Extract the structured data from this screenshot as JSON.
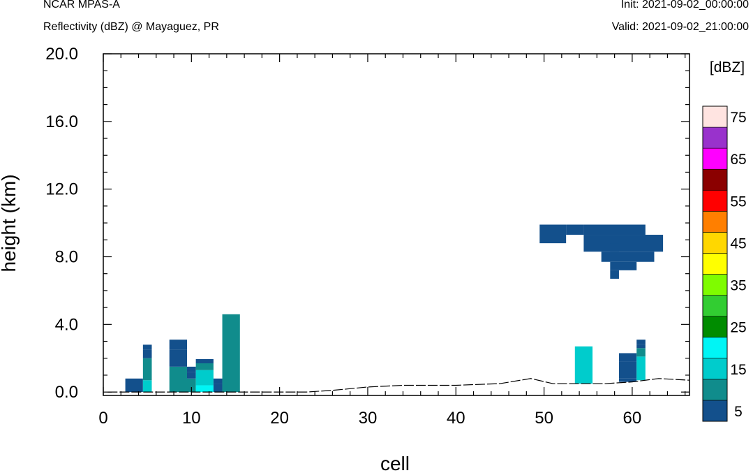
{
  "header": {
    "model": "NCAR MPAS-A",
    "field": "Reflectivity (dBZ) @ Mayaguez, PR",
    "init": "Init: 2021-09-02_00:00:00",
    "valid": "Valid: 2021-09-02_21:00:00"
  },
  "chart_data": {
    "type": "heatmap",
    "xlabel": "cell",
    "ylabel": "height (km)",
    "xlim": [
      0,
      66.5
    ],
    "ylim": [
      -0.2,
      20.0
    ],
    "x_ticks": [
      0,
      10,
      20,
      30,
      40,
      50,
      60
    ],
    "x_tick_labels": [
      "0",
      "10",
      "20",
      "30",
      "40",
      "50",
      "60"
    ],
    "y_ticks": [
      0,
      4,
      8,
      12,
      16,
      20
    ],
    "y_tick_labels": [
      "0.0",
      "4.0",
      "8.0",
      "12.0",
      "16.0",
      "20.0"
    ],
    "colorbar": {
      "title": "[dBZ]",
      "bounds": [
        0,
        10,
        15,
        20,
        25,
        30,
        35,
        40,
        45,
        50,
        55,
        60,
        65,
        70,
        75
      ],
      "labels": [
        "5",
        "15",
        "25",
        "35",
        "45",
        "55",
        "65",
        "75"
      ],
      "colors": [
        "#13508c",
        "#108c8c",
        "#00cccc",
        "#00f5f5",
        "#008c00",
        "#32cd32",
        "#7ffc00",
        "#ffff00",
        "#ffd700",
        "#ff7f00",
        "#ff0000",
        "#8b0000",
        "#ff00ff",
        "#9932cc",
        "#ffe4e1"
      ]
    },
    "terrain": [
      [
        0.5,
        0.0
      ],
      [
        23,
        0.0
      ],
      [
        26,
        0.1
      ],
      [
        30,
        0.3
      ],
      [
        34,
        0.4
      ],
      [
        40,
        0.4
      ],
      [
        45,
        0.5
      ],
      [
        48.5,
        0.8
      ],
      [
        51,
        0.5
      ],
      [
        54,
        0.5
      ],
      [
        57,
        0.5
      ],
      [
        60,
        0.6
      ],
      [
        63,
        0.8
      ],
      [
        66.5,
        0.7
      ]
    ],
    "cells": [
      {
        "x0": 2.5,
        "x1": 4.5,
        "y0": 0.0,
        "y1": 0.8,
        "dbz": 5
      },
      {
        "x0": 4.5,
        "x1": 5.5,
        "y0": 0.0,
        "y1": 0.7,
        "dbz": 17
      },
      {
        "x0": 4.5,
        "x1": 5.5,
        "y0": 0.7,
        "y1": 2.0,
        "dbz": 13
      },
      {
        "x0": 4.5,
        "x1": 5.5,
        "y0": 2.0,
        "y1": 2.5,
        "dbz": 8
      },
      {
        "x0": 4.5,
        "x1": 5.5,
        "y0": 2.5,
        "y1": 2.8,
        "dbz": 5
      },
      {
        "x0": 7.5,
        "x1": 9.5,
        "y0": 0.0,
        "y1": 1.5,
        "dbz": 13
      },
      {
        "x0": 7.5,
        "x1": 9.5,
        "y0": 1.5,
        "y1": 2.5,
        "dbz": 8
      },
      {
        "x0": 7.5,
        "x1": 9.5,
        "y0": 2.5,
        "y1": 3.1,
        "dbz": 5
      },
      {
        "x0": 9.5,
        "x1": 10.5,
        "y0": 0.0,
        "y1": 0.8,
        "dbz": 13
      },
      {
        "x0": 9.5,
        "x1": 10.5,
        "y0": 0.8,
        "y1": 1.2,
        "dbz": 8
      },
      {
        "x0": 9.5,
        "x1": 10.5,
        "y0": 1.2,
        "y1": 1.5,
        "dbz": 5
      },
      {
        "x0": 10.5,
        "x1": 12.5,
        "y0": 0.0,
        "y1": 0.4,
        "dbz": 22
      },
      {
        "x0": 10.5,
        "x1": 12.5,
        "y0": 0.4,
        "y1": 1.3,
        "dbz": 17
      },
      {
        "x0": 10.5,
        "x1": 12.5,
        "y0": 1.3,
        "y1": 1.7,
        "dbz": 13
      },
      {
        "x0": 10.5,
        "x1": 12.5,
        "y0": 1.7,
        "y1": 1.95,
        "dbz": 8
      },
      {
        "x0": 12.5,
        "x1": 13.5,
        "y0": 0.0,
        "y1": 0.5,
        "dbz": 8
      },
      {
        "x0": 12.5,
        "x1": 13.5,
        "y0": 0.5,
        "y1": 0.8,
        "dbz": 5
      },
      {
        "x0": 13.5,
        "x1": 15.5,
        "y0": 0.0,
        "y1": 4.6,
        "dbz": 13
      },
      {
        "x0": 53.5,
        "x1": 55.5,
        "y0": 0.5,
        "y1": 2.7,
        "dbz": 17
      },
      {
        "x0": 58.5,
        "x1": 60.5,
        "y0": 0.6,
        "y1": 0.8,
        "dbz": 5
      },
      {
        "x0": 58.5,
        "x1": 60.5,
        "y0": 0.8,
        "y1": 1.8,
        "dbz": 8
      },
      {
        "x0": 58.5,
        "x1": 60.5,
        "y0": 1.8,
        "y1": 2.3,
        "dbz": 5
      },
      {
        "x0": 60.5,
        "x1": 61.5,
        "y0": 0.7,
        "y1": 2.1,
        "dbz": 17
      },
      {
        "x0": 60.5,
        "x1": 61.5,
        "y0": 2.1,
        "y1": 2.6,
        "dbz": 13
      },
      {
        "x0": 60.5,
        "x1": 61.5,
        "y0": 2.6,
        "y1": 2.85,
        "dbz": 8
      },
      {
        "x0": 60.5,
        "x1": 61.5,
        "y0": 2.85,
        "y1": 3.1,
        "dbz": 5
      },
      {
        "x0": 49.5,
        "x1": 52.5,
        "y0": 8.8,
        "y1": 9.9,
        "dbz": 5
      },
      {
        "x0": 52.5,
        "x1": 54.5,
        "y0": 9.3,
        "y1": 9.9,
        "dbz": 5
      },
      {
        "x0": 54.5,
        "x1": 61.5,
        "y0": 9.3,
        "y1": 9.9,
        "dbz": 5
      },
      {
        "x0": 54.5,
        "x1": 63.5,
        "y0": 8.3,
        "y1": 9.3,
        "dbz": 5
      },
      {
        "x0": 56.5,
        "x1": 62.5,
        "y0": 7.7,
        "y1": 8.3,
        "dbz": 5
      },
      {
        "x0": 57.5,
        "x1": 60.5,
        "y0": 7.2,
        "y1": 7.7,
        "dbz": 5
      },
      {
        "x0": 57.5,
        "x1": 58.5,
        "y0": 6.7,
        "y1": 7.2,
        "dbz": 5
      },
      {
        "x0": 57.5,
        "x1": 58.5,
        "y0": 8.3,
        "y1": 8.8,
        "dbz": 8
      }
    ]
  }
}
